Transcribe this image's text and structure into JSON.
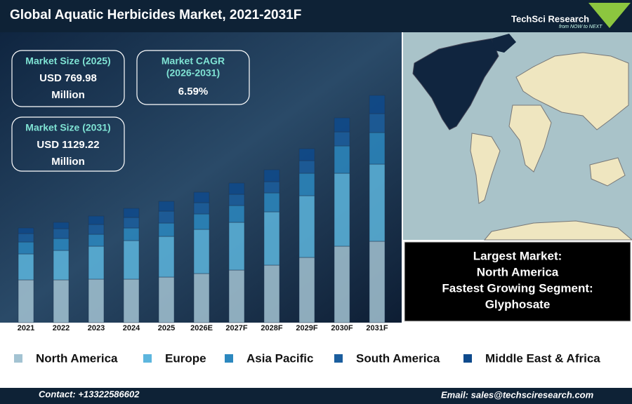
{
  "header": {
    "title": "Global Aquatic Herbicides Market, 2021-2031F",
    "logo": "TechSci Research",
    "tagline": "from NOW to NEXT"
  },
  "stats": [
    {
      "label": "Market Size (2025)",
      "value": "USD 769.98",
      "unit": "Million"
    },
    {
      "label": "Market CAGR",
      "period": "(2026-2031)",
      "value": "6.59%"
    },
    {
      "label": "Market Size (2031)",
      "value": "USD 1129.22",
      "unit": "Million"
    }
  ],
  "info": {
    "largest_label": "Largest Market:",
    "largest_value": "North America",
    "fastest_label": "Fastest Growing Segment:",
    "fastest_value": "Glyphosate"
  },
  "chart_data": {
    "type": "bar",
    "stacked": true,
    "categories": [
      "2021",
      "2022",
      "2023",
      "2024",
      "2025",
      "2026E",
      "2027F",
      "2028F",
      "2029F",
      "2030F",
      "2031F"
    ],
    "series": [
      {
        "name": "North America",
        "color": "#a3c3d2",
        "values": [
          61,
          61,
          62,
          62,
          65,
          70,
          75,
          82,
          93,
          109,
          116
        ]
      },
      {
        "name": "Europe",
        "color": "#5db6de",
        "values": [
          37,
          42,
          47,
          55,
          58,
          63,
          68,
          76,
          88,
          104,
          110
        ]
      },
      {
        "name": "Asia Pacific",
        "color": "#2c88bf",
        "values": [
          17,
          17,
          17,
          18,
          19,
          22,
          24,
          27,
          32,
          39,
          45
        ]
      },
      {
        "name": "South America",
        "color": "#1b5e9e",
        "values": [
          12,
          14,
          14,
          15,
          17,
          16,
          16,
          16,
          18,
          20,
          27
        ]
      },
      {
        "name": "Middle East & Africa",
        "color": "#0e4a8c",
        "values": [
          8,
          9,
          12,
          13,
          14,
          15,
          16,
          17,
          17,
          20,
          26
        ]
      }
    ]
  },
  "footer": {
    "contact": "Contact: +13322586602",
    "email": "Email: sales@techsciresearch.com"
  }
}
